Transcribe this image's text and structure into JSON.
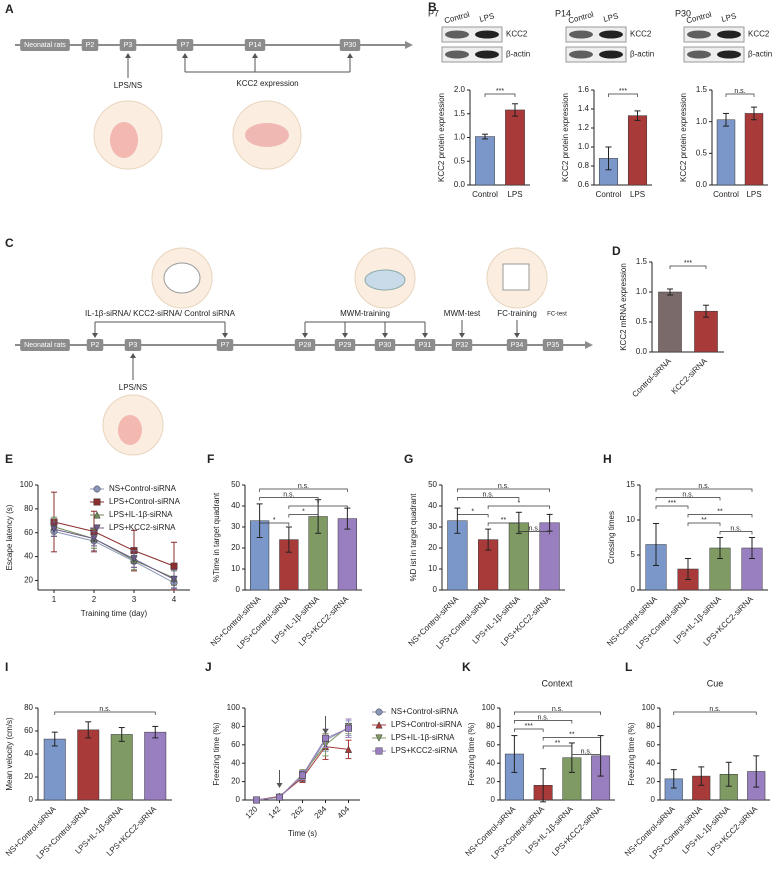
{
  "timeline_a": {
    "label": "A",
    "nodes": [
      "Neonatal rats",
      "P2",
      "P3",
      "P7",
      "P14",
      "P30"
    ],
    "injection": "LPS/NS",
    "measure": "KCC2 expression"
  },
  "timeline_c": {
    "label": "C",
    "nodes": [
      "Neonatal rats",
      "P2",
      "P3",
      "P7",
      "P28",
      "P29",
      "P30",
      "P31",
      "P32",
      "P34",
      "P35"
    ],
    "injection": "LPS/NS",
    "sirna": "IL-1β-siRNA/ KCC2-siRNA/ Control siRNA",
    "stages": [
      "MWM-training",
      "MWM-test",
      "FC-training",
      "FC-test"
    ]
  },
  "chart_data": [
    {
      "type": "bar",
      "label": "B",
      "title": "P7",
      "blot": {
        "lanes": [
          "Control",
          "LPS"
        ],
        "bands": [
          "KCC2",
          "β-actin"
        ]
      },
      "categories": [
        "Control",
        "LPS"
      ],
      "values": [
        1.02,
        1.58
      ],
      "errors": [
        0.05,
        0.13
      ],
      "colors": [
        "#7b97c9",
        "#a83a3a"
      ],
      "ylabel": "KCC2 protein expression",
      "ylim": [
        0,
        2
      ],
      "yticks": [
        {
          "value": 0,
          "label": "0.0"
        },
        0.5,
        {
          "value": 1,
          "label": "1.0"
        },
        1.5,
        {
          "value": 2,
          "label": "2.0"
        }
      ],
      "significance": [
        "***"
      ]
    },
    {
      "type": "bar",
      "title": "P14",
      "blot": {
        "lanes": [
          "Control",
          "LPS"
        ],
        "bands": [
          "KCC2",
          "β-actin"
        ]
      },
      "categories": [
        "Control",
        "LPS"
      ],
      "values": [
        0.88,
        1.33
      ],
      "errors": [
        0.12,
        0.05
      ],
      "colors": [
        "#7b97c9",
        "#a83a3a"
      ],
      "ylabel": "KCC2 protein expression",
      "ylim": [
        0.6,
        1.6
      ],
      "yticks": [
        0.6,
        0.8,
        {
          "value": 1,
          "label": "1.0"
        },
        1.2,
        1.4,
        1.6
      ],
      "significance": [
        "***"
      ]
    },
    {
      "type": "bar",
      "title": "P30",
      "blot": {
        "lanes": [
          "Control",
          "LPS"
        ],
        "bands": [
          "KCC2",
          "β-actin"
        ]
      },
      "categories": [
        "Control",
        "LPS"
      ],
      "values": [
        1.03,
        1.13
      ],
      "errors": [
        0.1,
        0.1
      ],
      "colors": [
        "#7b97c9",
        "#a83a3a"
      ],
      "ylabel": "KCC2 protein expression",
      "ylim": [
        0,
        1.5
      ],
      "yticks": [
        {
          "value": 0,
          "label": "0.0"
        },
        0.5,
        {
          "value": 1,
          "label": "1.0"
        },
        1.5
      ],
      "significance": [
        "n.s."
      ]
    },
    {
      "type": "bar",
      "label": "D",
      "categories": [
        "Control-siRNA",
        "KCC2-siRNA"
      ],
      "values": [
        1.0,
        0.68
      ],
      "errors": [
        0.05,
        0.1
      ],
      "colors": [
        "#7a6a6a",
        "#a83a3a"
      ],
      "ylabel": "KCC2 mRNA expression",
      "ylim": [
        0,
        1.5
      ],
      "yticks": [
        {
          "value": 0,
          "label": "0.0"
        },
        0.5,
        {
          "value": 1,
          "label": "1.0"
        },
        1.5
      ],
      "significance": [
        "***"
      ]
    },
    {
      "type": "line",
      "label": "E",
      "x": [
        1,
        2,
        3,
        4
      ],
      "xlim": [
        0.6,
        4.4
      ],
      "xticks": [
        1,
        2,
        3,
        4
      ],
      "xlabel": "Training time (day)",
      "ylabel": "Escape latency (s)",
      "ylim": [
        12,
        100
      ],
      "yticks": [
        20,
        40,
        60,
        80,
        100
      ],
      "legend": "upper right",
      "series": [
        {
          "name": "NS+Control-siRNA",
          "color": "#8a96b8",
          "marker": "circle",
          "values": [
            61,
            53,
            36,
            18
          ],
          "errors": [
            4,
            8,
            5,
            4
          ]
        },
        {
          "name": "LPS+Control-siRNA",
          "color": "#8b2e2e",
          "marker": "square",
          "values": [
            69,
            61,
            45,
            32
          ],
          "errors": [
            25,
            17,
            17,
            20
          ]
        },
        {
          "name": "LPS+IL-1β-siRNA",
          "color": "#6e8a57",
          "marker": "triangle",
          "values": [
            65,
            55,
            37,
            22
          ],
          "errors": [
            8,
            8,
            8,
            6
          ]
        },
        {
          "name": "LPS+KCC2-siRNA",
          "color": "#6c5a8a",
          "marker": "triangle-down",
          "values": [
            63,
            55,
            38,
            21
          ],
          "errors": [
            6,
            6,
            7,
            8
          ]
        }
      ]
    },
    {
      "type": "bar",
      "label": "F",
      "categories": [
        "NS+Control-siRNA",
        "LPS+Control-siRNA",
        "LPS+IL-1β-siRNA",
        "LPS+KCC2-siRNA"
      ],
      "values": [
        33,
        24,
        35,
        34
      ],
      "errors": [
        8,
        6,
        8,
        5
      ],
      "colors": [
        "#7b97c9",
        "#a83a3a",
        "#7f9a63",
        "#9a7fc0"
      ],
      "ylabel": "%Time in target quadrant",
      "ylim": [
        0,
        50
      ],
      "yticks": [
        0,
        10,
        20,
        30,
        40,
        50
      ],
      "significance": [
        "n.s.",
        "n.s.",
        "*",
        "*",
        "*"
      ]
    },
    {
      "type": "bar",
      "label": "G",
      "categories": [
        "NS+Control-siRNA",
        "LPS+Control-siRNA",
        "LPS+IL-1β-siRNA",
        "LPS+KCC2-siRNA"
      ],
      "values": [
        33,
        24,
        32,
        32
      ],
      "errors": [
        6,
        5,
        5,
        4
      ],
      "colors": [
        "#7b97c9",
        "#a83a3a",
        "#7f9a63",
        "#9a7fc0"
      ],
      "ylabel": "%D ist in target quadrant",
      "ylim": [
        0,
        50
      ],
      "yticks": [
        0,
        10,
        20,
        30,
        40,
        50
      ],
      "significance": [
        "n.s.",
        "n.s.",
        "*",
        "*",
        "**",
        "n.s."
      ]
    },
    {
      "type": "bar",
      "label": "H",
      "categories": [
        "NS+Control-siRNA",
        "LPS+Control-siRNA",
        "LPS+IL-1β-siRNA",
        "LPS+KCC2-siRNA"
      ],
      "values": [
        6.5,
        3,
        6,
        6
      ],
      "errors": [
        3,
        1.5,
        1.5,
        1.5
      ],
      "colors": [
        "#7b97c9",
        "#a83a3a",
        "#7f9a63",
        "#9a7fc0"
      ],
      "ylabel": "Crossing times",
      "ylim": [
        0,
        15
      ],
      "yticks": [
        0,
        5,
        10,
        15
      ],
      "significance": [
        "n.s.",
        "n.s.",
        "***",
        "**",
        "**",
        "n.s."
      ]
    },
    {
      "type": "bar",
      "label": "I",
      "categories": [
        "NS+Control-siRNA",
        "LPS+Control-siRNA",
        "LPS+IL-1β-siRNA",
        "LPS+KCC2-siRNA"
      ],
      "values": [
        53,
        61,
        57,
        59
      ],
      "errors": [
        6,
        7,
        6,
        5
      ],
      "colors": [
        "#7b97c9",
        "#a83a3a",
        "#7f9a63",
        "#9a7fc0"
      ],
      "ylabel": "Mean velocity (cm/s)",
      "ylim": [
        0,
        80
      ],
      "yticks": [
        0,
        20,
        40,
        60,
        80
      ],
      "significance": [
        "n.s."
      ]
    },
    {
      "type": "line",
      "label": "J",
      "categories": [
        "120",
        "142",
        "262",
        "284",
        "404"
      ],
      "xlabel": "Time (s)",
      "ylabel": "Freezing time (%)",
      "ylim": [
        0,
        100
      ],
      "yticks": [
        0,
        20,
        40,
        60,
        80,
        100
      ],
      "legend": "outside right",
      "series": [
        {
          "name": "NS+Control-siRNA",
          "color": "#8a96b8",
          "marker": "circle",
          "values": [
            0,
            3,
            25,
            65,
            78
          ],
          "errors": [
            1,
            2,
            5,
            12,
            8
          ]
        },
        {
          "name": "LPS+Control-siRNA",
          "color": "#a83a3a",
          "marker": "triangle",
          "values": [
            0,
            4,
            24,
            58,
            55
          ],
          "errors": [
            1,
            2,
            5,
            14,
            10
          ]
        },
        {
          "name": "LPS+IL-1β-siRNA",
          "color": "#7f9a63",
          "marker": "triangle-down",
          "values": [
            0,
            3,
            28,
            60,
            80
          ],
          "errors": [
            1,
            2,
            5,
            12,
            8
          ]
        },
        {
          "name": "LPS+KCC2-siRNA",
          "color": "#9a7fc0",
          "marker": "square",
          "values": [
            0,
            3,
            27,
            67,
            78
          ],
          "errors": [
            1,
            2,
            5,
            10,
            10
          ]
        }
      ]
    },
    {
      "type": "bar",
      "label": "K",
      "title": "Context",
      "categories": [
        "NS+Control-siRNA",
        "LPS+Control-siRNA",
        "LPS+IL-1β-siRNA",
        "LPS+KCC2-siRNA"
      ],
      "values": [
        50,
        16,
        46,
        48
      ],
      "errors": [
        20,
        18,
        16,
        22
      ],
      "colors": [
        "#7b97c9",
        "#a83a3a",
        "#7f9a63",
        "#9a7fc0"
      ],
      "ylabel": "Freezing time (%)",
      "ylim": [
        0,
        100
      ],
      "yticks": [
        0,
        20,
        40,
        60,
        80,
        100
      ],
      "significance": [
        "n.s.",
        "n.s.",
        "***",
        "**",
        "**",
        "n.s."
      ]
    },
    {
      "type": "bar",
      "label": "L",
      "title": "Cue",
      "categories": [
        "NS+Control-siRNA",
        "LPS+Control-siRNA",
        "LPS+IL-1β-siRNA",
        "LPS+KCC2-siRNA"
      ],
      "values": [
        23,
        26,
        28,
        31
      ],
      "errors": [
        10,
        10,
        13,
        17
      ],
      "colors": [
        "#7b97c9",
        "#a83a3a",
        "#7f9a63",
        "#9a7fc0"
      ],
      "ylabel": "Freezing time (%)",
      "ylim": [
        0,
        100
      ],
      "yticks": [
        0,
        20,
        40,
        60,
        80,
        100
      ],
      "significance": [
        "n.s."
      ]
    }
  ]
}
